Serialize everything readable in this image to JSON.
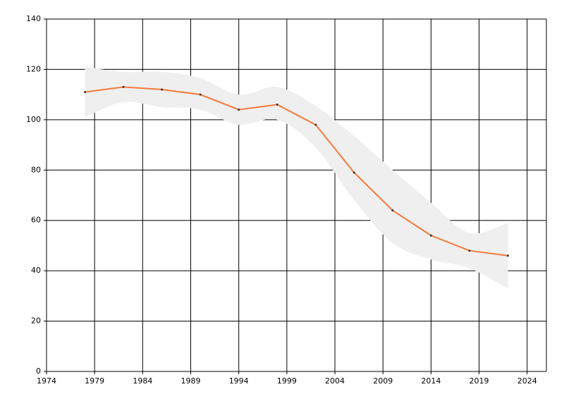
{
  "chart_data": {
    "type": "line",
    "x": [
      1978,
      1982,
      1986,
      1990,
      1994,
      1998,
      2002,
      2006,
      2010,
      2014,
      2018,
      2022
    ],
    "series": [
      {
        "color": "#f5793a",
        "values": [
          111,
          113,
          112,
          110,
          104,
          106,
          98,
          79,
          64,
          54,
          48,
          46
        ]
      }
    ],
    "band": {
      "color": "#efefef",
      "lower": [
        101,
        107,
        105,
        104,
        98,
        100,
        89,
        68,
        51,
        44.5,
        41,
        33
      ],
      "upper": [
        121,
        119,
        119,
        116.5,
        110,
        113,
        105.5,
        93.5,
        80,
        67,
        55,
        59
      ]
    },
    "xlim": [
      1974,
      2026
    ],
    "xticks": [
      1974,
      1979,
      1984,
      1989,
      1994,
      1999,
      2004,
      2009,
      2014,
      2019,
      2024
    ],
    "ylim": [
      0,
      140
    ],
    "yticks": [
      0,
      20,
      40,
      60,
      80,
      100,
      120,
      140
    ],
    "grid": true
  }
}
